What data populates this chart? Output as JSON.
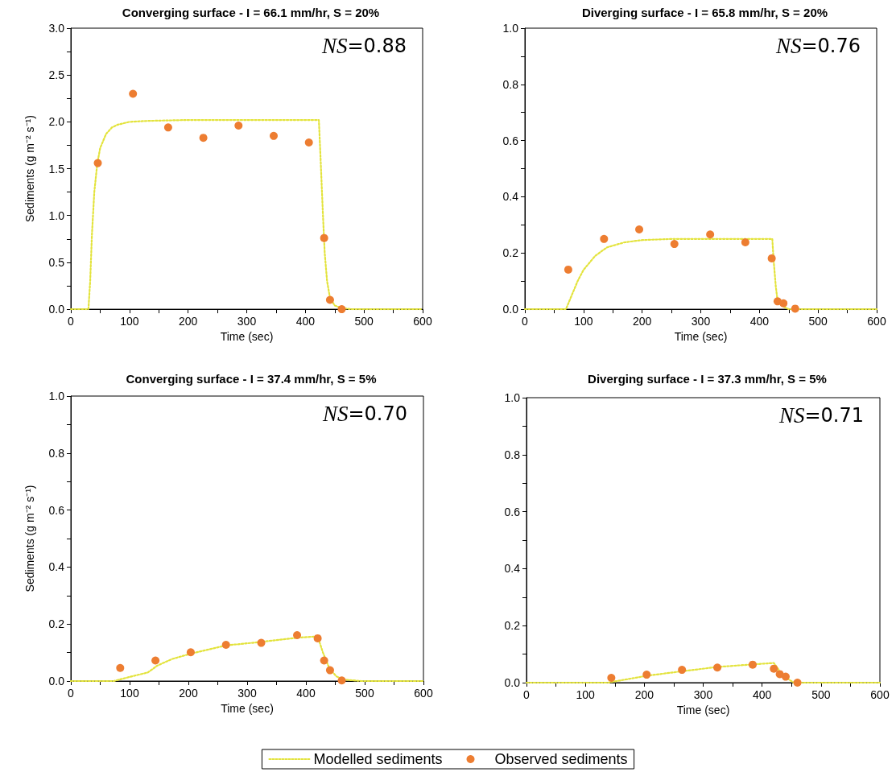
{
  "chart_data": [
    {
      "type": "scatter",
      "title": "Converging surface - I = 66.1 mm/hr, S = 20%",
      "xlabel": "Time (sec)",
      "ylabel": "Sediments (g m⁻² s⁻¹)",
      "annotations": [
        "NS=0.88"
      ],
      "legend": false,
      "grid": false,
      "xlim": [
        0,
        600
      ],
      "xticks": [
        0,
        {
          "value": 50,
          "label": null
        },
        100,
        {
          "value": 150,
          "label": null
        },
        200,
        {
          "value": 250,
          "label": null
        },
        300,
        {
          "value": 350,
          "label": null
        },
        400,
        {
          "value": 450,
          "label": null
        },
        500,
        {
          "value": 550,
          "label": null
        },
        600
      ],
      "ylim": [
        0,
        3
      ],
      "yticks": [
        {
          "value": 0,
          "label": "0.0"
        },
        {
          "value": 0.25,
          "label": null
        },
        {
          "value": 0.5,
          "label": "0.5"
        },
        {
          "value": 0.75,
          "label": null
        },
        {
          "value": 1,
          "label": "1.0"
        },
        {
          "value": 1.25,
          "label": null
        },
        {
          "value": 1.5,
          "label": "1.5"
        },
        {
          "value": 1.75,
          "label": null
        },
        {
          "value": 2,
          "label": "2.0"
        },
        {
          "value": 2.25,
          "label": null
        },
        {
          "value": 2.5,
          "label": "2.5"
        },
        {
          "value": 2.75,
          "label": null
        },
        {
          "value": 3,
          "label": "3.0"
        }
      ],
      "series": [
        {
          "type": "line",
          "line_style": "dotted",
          "marker": "none",
          "color": "#e3e33c",
          "x": [
            0,
            30,
            33,
            36,
            40,
            45,
            50,
            60,
            70,
            80,
            100,
            130,
            200,
            423,
            426,
            430,
            433,
            437,
            442,
            450,
            462,
            480,
            600
          ],
          "values": [
            0,
            0,
            0.3,
            0.8,
            1.25,
            1.55,
            1.72,
            1.87,
            1.94,
            1.97,
            2.0,
            2.01,
            2.02,
            2.02,
            1.6,
            1.0,
            0.6,
            0.3,
            0.12,
            0.04,
            0.01,
            0,
            0
          ]
        },
        {
          "marker": "circle",
          "color": "#ed7d31",
          "x": [
            46,
            106,
            166,
            226,
            286,
            346,
            406,
            432,
            442,
            462
          ],
          "values": [
            1.56,
            2.3,
            1.94,
            1.83,
            1.96,
            1.85,
            1.78,
            0.76,
            0.1,
            0.0
          ]
        }
      ]
    },
    {
      "type": "scatter",
      "title": "Diverging surface - I = 65.8 mm/hr, S = 20%",
      "xlabel": "Time (sec)",
      "annotations": [
        "NS=0.76"
      ],
      "legend": false,
      "grid": false,
      "xlim": [
        0,
        600
      ],
      "xticks": [
        0,
        {
          "value": 50,
          "label": null
        },
        100,
        {
          "value": 150,
          "label": null
        },
        200,
        {
          "value": 250,
          "label": null
        },
        300,
        {
          "value": 350,
          "label": null
        },
        400,
        {
          "value": 450,
          "label": null
        },
        500,
        {
          "value": 550,
          "label": null
        },
        600
      ],
      "ylim": [
        0,
        1
      ],
      "yticks": [
        {
          "value": 0,
          "label": "0.0"
        },
        {
          "value": 0.1,
          "label": null
        },
        0.2,
        {
          "value": 0.3,
          "label": null
        },
        0.4,
        {
          "value": 0.5,
          "label": null
        },
        0.6,
        {
          "value": 0.7,
          "label": null
        },
        0.8,
        {
          "value": 0.9,
          "label": null
        },
        {
          "value": 1,
          "label": "1.0"
        }
      ],
      "series": [
        {
          "type": "line",
          "line_style": "dotted",
          "marker": "none",
          "color": "#e3e33c",
          "x": [
            0,
            70,
            80,
            90,
            100,
            120,
            140,
            170,
            200,
            250,
            422,
            424,
            428,
            431,
            440,
            450,
            600
          ],
          "values": [
            0,
            0,
            0.05,
            0.1,
            0.14,
            0.19,
            0.22,
            0.238,
            0.246,
            0.25,
            0.25,
            0.18,
            0.08,
            0.03,
            0.01,
            0,
            0
          ]
        },
        {
          "marker": "circle",
          "color": "#ed7d31",
          "x": [
            74,
            135,
            195,
            255,
            316,
            376,
            421,
            431,
            441,
            461
          ],
          "values": [
            0.141,
            0.25,
            0.284,
            0.232,
            0.266,
            0.238,
            0.181,
            0.028,
            0.021,
            0.002
          ]
        }
      ]
    },
    {
      "type": "scatter",
      "title": "Converging surface - I = 37.4 mm/hr, S = 5%",
      "xlabel": "Time (sec)",
      "ylabel": "Sediments (g m⁻² s⁻¹)",
      "annotations": [
        "NS=0.70"
      ],
      "legend": "bottom",
      "grid": false,
      "xlim": [
        0,
        600
      ],
      "xticks": [
        0,
        {
          "value": 50,
          "label": null
        },
        100,
        {
          "value": 150,
          "label": null
        },
        200,
        {
          "value": 250,
          "label": null
        },
        300,
        {
          "value": 350,
          "label": null
        },
        400,
        {
          "value": 450,
          "label": null
        },
        500,
        {
          "value": 550,
          "label": null
        },
        600
      ],
      "ylim": [
        0,
        1
      ],
      "yticks": [
        {
          "value": 0,
          "label": "0.0"
        },
        {
          "value": 0.1,
          "label": null
        },
        0.2,
        {
          "value": 0.3,
          "label": null
        },
        0.4,
        {
          "value": 0.5,
          "label": null
        },
        0.6,
        {
          "value": 0.7,
          "label": null
        },
        0.8,
        {
          "value": 0.9,
          "label": null
        },
        {
          "value": 1,
          "label": "1.0"
        }
      ],
      "series": [
        {
          "type": "line",
          "name": "Modelled sediments",
          "line_style": "dotted",
          "marker": "none",
          "color": "#e3e33c",
          "x": [
            0,
            73,
            103,
            131,
            147,
            172,
            204,
            264,
            323,
            385,
            415,
            421,
            429,
            440,
            452,
            465,
            494,
            600
          ],
          "values": [
            0,
            0,
            0.016,
            0.03,
            0.054,
            0.077,
            0.096,
            0.125,
            0.137,
            0.152,
            0.156,
            0.15,
            0.1,
            0.044,
            0.016,
            0.005,
            0,
            0
          ]
        },
        {
          "name": "Observed sediments",
          "marker": "circle",
          "color": "#ed7d31",
          "x": [
            84,
            144,
            204,
            264,
            324,
            385,
            420,
            431,
            441,
            461
          ],
          "values": [
            0.046,
            0.072,
            0.101,
            0.127,
            0.134,
            0.161,
            0.15,
            0.072,
            0.038,
            0.002
          ]
        }
      ]
    },
    {
      "type": "scatter",
      "title": "Diverging surface - I = 37.3 mm/hr, S = 5%",
      "xlabel": "Time (sec)",
      "annotations": [
        "NS=0.71"
      ],
      "legend": false,
      "grid": false,
      "xlim": [
        0,
        600
      ],
      "xticks": [
        0,
        {
          "value": 50,
          "label": null
        },
        100,
        {
          "value": 150,
          "label": null
        },
        200,
        {
          "value": 250,
          "label": null
        },
        300,
        {
          "value": 350,
          "label": null
        },
        400,
        {
          "value": 450,
          "label": null
        },
        500,
        {
          "value": 550,
          "label": null
        },
        600
      ],
      "ylim": [
        0,
        1
      ],
      "yticks": [
        {
          "value": 0,
          "label": "0.0"
        },
        {
          "value": 0.1,
          "label": null
        },
        0.2,
        {
          "value": 0.3,
          "label": null
        },
        0.4,
        {
          "value": 0.5,
          "label": null
        },
        0.6,
        {
          "value": 0.7,
          "label": null
        },
        0.8,
        {
          "value": 0.9,
          "label": null
        },
        {
          "value": 1,
          "label": "1.0"
        }
      ],
      "series": [
        {
          "type": "line",
          "line_style": "dotted",
          "marker": "none",
          "color": "#e3e33c",
          "x": [
            0,
            138,
            204,
            264,
            324,
            384,
            420,
            430,
            440,
            454,
            600
          ],
          "values": [
            0,
            0,
            0.024,
            0.04,
            0.055,
            0.064,
            0.069,
            0.04,
            0.018,
            0,
            0
          ]
        },
        {
          "marker": "circle",
          "color": "#ed7d31",
          "x": [
            144,
            204,
            264,
            324,
            384,
            420,
            430,
            440,
            460
          ],
          "values": [
            0.017,
            0.028,
            0.045,
            0.053,
            0.063,
            0.049,
            0.03,
            0.021,
            0.0
          ]
        }
      ]
    }
  ]
}
